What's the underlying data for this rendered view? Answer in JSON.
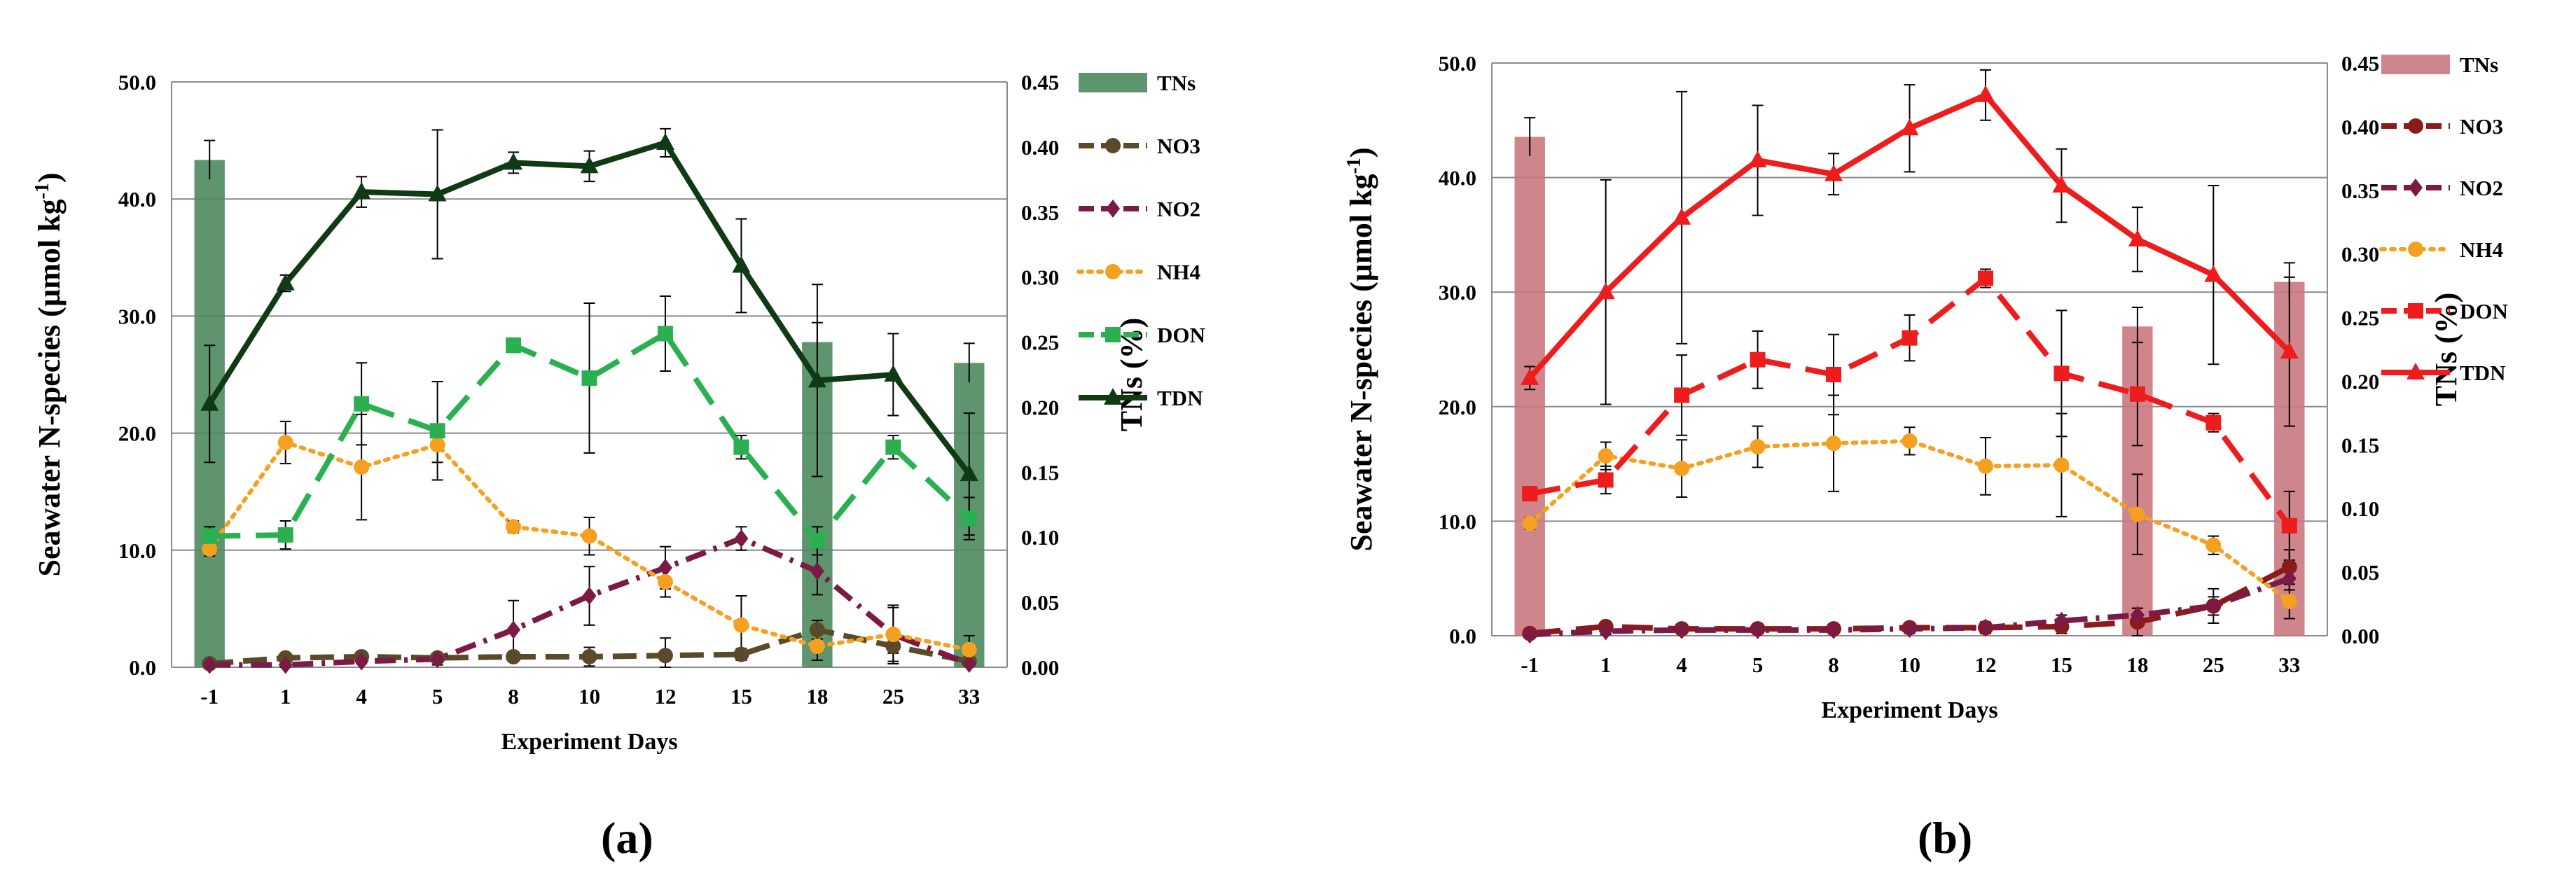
{
  "panel_labels": [
    "(a)",
    "(b)"
  ],
  "chart_data": [
    {
      "type": "bar+line",
      "panel": "(a)",
      "title": "",
      "xlabel": "Experiment Days",
      "ylabel": "Seawater  N-species (µmol kg-1)",
      "ylabel_main": "Seawater  N-species (µmol kg",
      "ylabel_sup": "-1",
      "ylabel_tail": ")",
      "y2label": "TNs  (%)",
      "categories": [
        "-1",
        "1",
        "4",
        "5",
        "8",
        "10",
        "12",
        "15",
        "18",
        "25",
        "33"
      ],
      "ylim": [
        0,
        50
      ],
      "y2lim": [
        0,
        0.45
      ],
      "yticks": [
        "0.0",
        "10.0",
        "20.0",
        "30.0",
        "40.0",
        "50.0"
      ],
      "y2ticks": [
        "0.00",
        "0.05",
        "0.10",
        "0.15",
        "0.20",
        "0.25",
        "0.30",
        "0.35",
        "0.40",
        "0.45"
      ],
      "grid": true,
      "legend_position": "right",
      "bars": {
        "name": "TNs",
        "color": "#4e8a5e",
        "values": [
          0.39,
          null,
          null,
          null,
          null,
          null,
          null,
          null,
          0.25,
          null,
          0.234
        ]
      },
      "series": [
        {
          "name": "NO3",
          "color": "#5a4a2a",
          "marker": "circle",
          "dash": "long",
          "values": [
            0.3,
            0.8,
            0.9,
            0.8,
            0.9,
            0.9,
            1.0,
            1.1,
            3.2,
            1.8,
            0.5
          ],
          "errors": [
            0.2,
            0.3,
            0.3,
            0.3,
            0.3,
            0.8,
            1.5,
            0.5,
            0.8,
            0.6,
            0.3
          ]
        },
        {
          "name": "NO2",
          "color": "#7a1a45",
          "marker": "diamond",
          "dash": "dashdot",
          "values": [
            0.2,
            0.2,
            0.5,
            0.7,
            3.2,
            6.1,
            8.5,
            11.0,
            8.2,
            2.8,
            0.3
          ],
          "errors": [
            0.1,
            0.2,
            0.2,
            0.5,
            2.5,
            2.5,
            1.8,
            1.0,
            2.0,
            2.5,
            0.2
          ]
        },
        {
          "name": "NH4",
          "color": "#f5a020",
          "marker": "circle",
          "dash": "dot",
          "values": [
            10.1,
            19.2,
            17.1,
            19.0,
            12.0,
            11.2,
            7.3,
            3.6,
            1.8,
            2.8,
            1.5
          ],
          "errors": [
            0.6,
            1.8,
            4.5,
            1.5,
            0.5,
            1.6,
            1.3,
            2.5,
            1.2,
            2.3,
            1.2
          ]
        },
        {
          "name": "DON",
          "color": "#2ab050",
          "marker": "square",
          "dash": "longdash",
          "values": [
            11.2,
            11.3,
            22.5,
            20.2,
            27.5,
            24.7,
            28.5,
            18.8,
            10.8,
            18.8,
            12.7
          ],
          "errors": [
            0.8,
            1.2,
            3.5,
            4.2,
            0.6,
            6.4,
            3.2,
            1.0,
            1.2,
            1.0,
            1.8
          ]
        },
        {
          "name": "TDN",
          "color": "#0f3a14",
          "marker": "triangle",
          "dash": "solid",
          "values": [
            22.5,
            32.8,
            40.6,
            40.4,
            43.1,
            42.8,
            44.8,
            34.3,
            24.5,
            25.0,
            16.5
          ],
          "errors": [
            5.0,
            0.7,
            1.3,
            5.5,
            0.9,
            1.3,
            1.2,
            4.0,
            8.2,
            3.5,
            5.2
          ]
        }
      ]
    },
    {
      "type": "bar+line",
      "panel": "(b)",
      "title": "",
      "xlabel": "Experiment Days",
      "ylabel": "Seawater N-species (µmol kg-1)",
      "ylabel_main": "Seawater N-species (µmol kg",
      "ylabel_sup": "-1",
      "ylabel_tail": ")",
      "y2label": "TNs  (%)",
      "categories": [
        "-1",
        "1",
        "4",
        "5",
        "8",
        "10",
        "12",
        "15",
        "18",
        "25",
        "33"
      ],
      "ylim": [
        0,
        50
      ],
      "y2lim": [
        0,
        0.45
      ],
      "yticks": [
        "0.0",
        "10.0",
        "20.0",
        "30.0",
        "40.0",
        "50.0"
      ],
      "y2ticks": [
        "0.00",
        "0.05",
        "0.10",
        "0.15",
        "0.20",
        "0.25",
        "0.30",
        "0.35",
        "0.40",
        "0.45"
      ],
      "grid": true,
      "legend_position": "right",
      "bars": {
        "name": "TNs",
        "color": "#c9787e",
        "values": [
          0.392,
          null,
          null,
          null,
          null,
          null,
          null,
          null,
          0.243,
          null,
          0.278
        ]
      },
      "series": [
        {
          "name": "NO3",
          "color": "#8b1a1a",
          "marker": "circle",
          "dash": "longdash",
          "values": [
            0.2,
            0.8,
            0.6,
            0.6,
            0.6,
            0.7,
            0.7,
            0.8,
            1.2,
            2.6,
            6.0
          ],
          "errors": [
            0.2,
            0.4,
            0.3,
            0.3,
            0.3,
            0.4,
            0.5,
            0.6,
            1.2,
            1.5,
            1.5
          ]
        },
        {
          "name": "NO2",
          "color": "#7a1a45",
          "marker": "diamond",
          "dash": "dashdot",
          "values": [
            0.1,
            0.4,
            0.5,
            0.5,
            0.5,
            0.6,
            0.7,
            1.3,
            1.8,
            2.6,
            5.0
          ],
          "errors": [
            0.1,
            0.3,
            0.3,
            0.3,
            0.3,
            0.4,
            0.5,
            0.5,
            0.6,
            0.8,
            1.0
          ]
        },
        {
          "name": "NH4",
          "color": "#f5a020",
          "marker": "circle",
          "dash": "dot",
          "values": [
            9.8,
            15.7,
            14.6,
            16.5,
            16.8,
            17.0,
            14.8,
            14.9,
            10.6,
            7.9,
            3.0
          ],
          "errors": [
            0.5,
            1.2,
            2.5,
            1.8,
            4.2,
            1.2,
            2.5,
            4.5,
            3.5,
            0.8,
            1.5
          ]
        },
        {
          "name": "DON",
          "color": "#ee1c1c",
          "marker": "square",
          "dash": "longdash",
          "values": [
            12.4,
            13.6,
            21.0,
            24.1,
            22.8,
            26.0,
            31.2,
            22.9,
            21.1,
            18.6,
            9.6
          ],
          "errors": [
            0.6,
            1.2,
            3.5,
            2.5,
            3.5,
            2.0,
            0.8,
            5.5,
            4.5,
            0.8,
            3.0
          ]
        },
        {
          "name": "TDN",
          "color": "#ee1c1c",
          "marker": "triangle",
          "dash": "solid",
          "values": [
            22.5,
            30.0,
            36.5,
            41.5,
            40.3,
            44.3,
            47.2,
            39.3,
            34.6,
            31.5,
            24.8
          ],
          "errors": [
            1.0,
            9.8,
            11.0,
            4.8,
            1.8,
            3.8,
            2.2,
            3.2,
            2.8,
            7.8,
            6.5
          ]
        }
      ]
    }
  ]
}
